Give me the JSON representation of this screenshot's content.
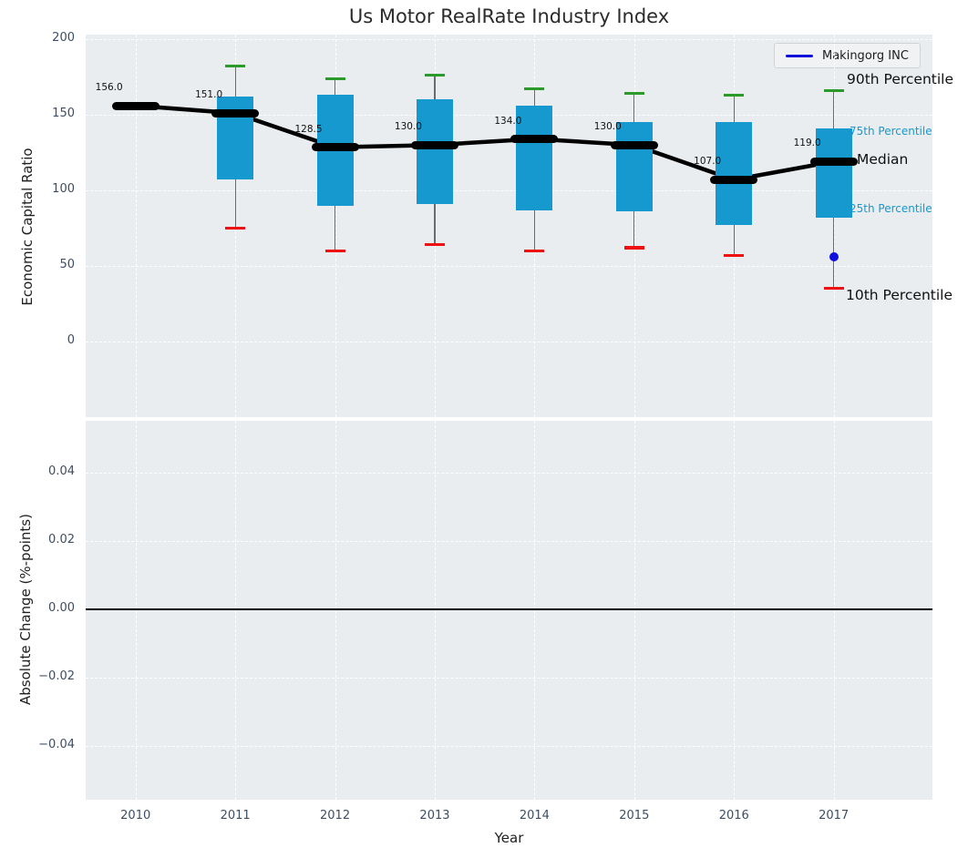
{
  "figure": {
    "title": "Us Motor RealRate Industry Index"
  },
  "legend": {
    "label": "Makingorg INC"
  },
  "annotations": {
    "p90": "90th Percentile",
    "p75": "75th Percentile",
    "median": "Median",
    "p25": "25th Percentile",
    "p10": "10th Percentile"
  },
  "axes": {
    "top": {
      "ylabel": "Economic Capital Ratio",
      "yticks": [
        "200",
        "150",
        "100",
        "50",
        "0"
      ],
      "ytick_values": [
        200,
        150,
        100,
        50,
        0
      ]
    },
    "bottom": {
      "ylabel": "Absolute Change (%-points)",
      "yticks": [
        "0.04",
        "0.02",
        "0.00",
        "−0.02",
        "−0.04"
      ],
      "ytick_values": [
        0.04,
        0.02,
        0.0,
        -0.02,
        -0.04
      ],
      "xlabel": "Year",
      "xticks": [
        "2010",
        "2011",
        "2012",
        "2013",
        "2014",
        "2015",
        "2016",
        "2017"
      ]
    }
  },
  "colors": {
    "box_fill": "#1699cf",
    "cap_top_green": "#2a9a2a",
    "cap_bottom_red": "#ee1111",
    "median_black": "#000000",
    "company_blue": "#1010dd",
    "axes_background": "#e9edef",
    "tick_label": "#3d4e63"
  },
  "chart_data": [
    {
      "type": "box",
      "title": "Us Motor RealRate Industry Index",
      "xlabel": "Year",
      "ylabel": "Economic Capital Ratio",
      "x": [
        2010,
        2011,
        2012,
        2013,
        2014,
        2015,
        2016,
        2017
      ],
      "xlim": [
        2009.5,
        2018.0
      ],
      "ylim": [
        -50,
        203
      ],
      "grid": true,
      "legend_position": "upper right",
      "series": {
        "median": [
          156.0,
          151.0,
          128.5,
          130.0,
          134.0,
          130.0,
          107.0,
          119.0
        ],
        "p90": [
          null,
          182,
          174,
          176,
          167,
          164,
          163,
          166
        ],
        "p75": [
          null,
          162,
          163,
          160,
          156,
          145,
          145,
          141
        ],
        "p25": [
          null,
          107,
          90,
          91,
          87,
          86,
          77,
          82
        ],
        "p10": [
          null,
          75,
          60,
          64,
          60,
          62,
          57,
          35
        ]
      },
      "median_labels": [
        "156.0",
        "151.0",
        "128.5",
        "130.0",
        "134.0",
        "130.0",
        "107.0",
        "119.0"
      ],
      "company_series": {
        "name": "Makingorg INC",
        "points": [
          {
            "x": 2017,
            "y": 56
          }
        ]
      }
    },
    {
      "type": "line",
      "xlabel": "Year",
      "ylabel": "Absolute Change (%-points)",
      "x": [
        2010,
        2011,
        2012,
        2013,
        2014,
        2015,
        2016,
        2017
      ],
      "ylim": [
        -0.0557,
        0.0552
      ],
      "grid": true,
      "series": [],
      "zero_line": 0.0
    }
  ]
}
